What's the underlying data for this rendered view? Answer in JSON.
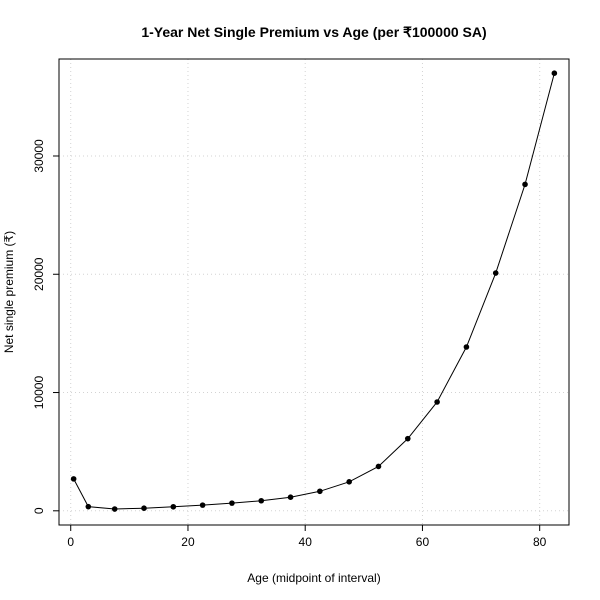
{
  "chart_data": {
    "type": "line",
    "title": "1-Year Net Single Premium vs Age (per ₹100000 SA)",
    "xlabel": "Age (midpoint of interval)",
    "ylabel": "Net single premium (₹)",
    "xlim": [
      -2,
      85
    ],
    "ylim": [
      -1200,
      38200
    ],
    "xticks": [
      0,
      20,
      40,
      60,
      80
    ],
    "yticks": [
      0,
      10000,
      20000,
      30000
    ],
    "xtick_labels": [
      "0",
      "20",
      "40",
      "60",
      "80"
    ],
    "ytick_labels": [
      "0",
      "10000",
      "20000",
      "30000"
    ],
    "grid": true,
    "series": [
      {
        "x": [
          0.5,
          3,
          7.5,
          12.5,
          17.5,
          22.5,
          27.5,
          32.5,
          37.5,
          42.5,
          47.5,
          52.5,
          57.5,
          62.5,
          67.5,
          72.5,
          77.5,
          82.5
        ],
        "y": [
          2700,
          350,
          150,
          220,
          340,
          480,
          650,
          850,
          1150,
          1650,
          2450,
          3750,
          6100,
          9200,
          13850,
          20100,
          27600,
          37000
        ]
      }
    ]
  }
}
